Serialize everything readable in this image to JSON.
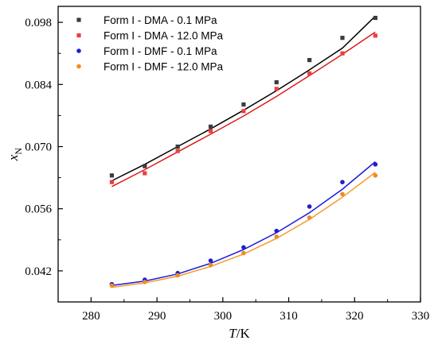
{
  "chart_data": {
    "type": "scatter",
    "xlabel": "T/K",
    "ylabel": "xN",
    "xlim": [
      275,
      330
    ],
    "ylim": [
      0.035,
      0.1016
    ],
    "xticks": [
      280,
      290,
      300,
      310,
      320,
      330
    ],
    "yticks": [
      0.042,
      0.056,
      0.07,
      0.084,
      0.098
    ],
    "ytick_labels": [
      "0.042",
      "0.056",
      "0.070",
      "0.084",
      "0.098"
    ],
    "legend_position": "top-left",
    "grid": false,
    "series": [
      {
        "name": "Form I - DMA - 0.1 MPa",
        "marker": "square",
        "color": "#3c3c3c",
        "fit_color": "#000000",
        "x": [
          283.15,
          288.15,
          293.15,
          298.15,
          303.15,
          308.15,
          313.15,
          318.15,
          323.15
        ],
        "y": [
          0.0635,
          0.0656,
          0.07,
          0.0745,
          0.0795,
          0.0845,
          0.0895,
          0.0945,
          0.099
        ],
        "fit": [
          0.0623,
          0.066,
          0.07,
          0.074,
          0.0782,
          0.0826,
          0.0873,
          0.0922,
          0.0994
        ]
      },
      {
        "name": "Form I - DMA - 12.0 MPa",
        "marker": "square",
        "color": "#e84141",
        "fit_color": "#e01a1a",
        "x": [
          283.15,
          288.15,
          293.15,
          298.15,
          303.15,
          308.15,
          313.15,
          318.15,
          323.15
        ],
        "y": [
          0.062,
          0.064,
          0.069,
          0.0735,
          0.078,
          0.083,
          0.0865,
          0.091,
          0.095
        ],
        "fit": [
          0.061,
          0.0648,
          0.0688,
          0.0728,
          0.0769,
          0.0813,
          0.086,
          0.0908,
          0.0958
        ]
      },
      {
        "name": "Form I - DMF - 0.1 MPa",
        "marker": "circle",
        "color": "#1f1fcf",
        "fit_color": "#1a1ae0",
        "x": [
          283.15,
          288.15,
          293.15,
          298.15,
          303.15,
          308.15,
          313.15,
          318.15,
          323.15
        ],
        "y": [
          0.039,
          0.04,
          0.0415,
          0.0443,
          0.0473,
          0.051,
          0.0565,
          0.062,
          0.066
        ],
        "fit": [
          0.0387,
          0.0397,
          0.0413,
          0.0437,
          0.0468,
          0.0506,
          0.0551,
          0.0604,
          0.0666
        ]
      },
      {
        "name": "Form I - DMF - 12.0 MPa",
        "marker": "circle",
        "color": "#f08c1e",
        "fit_color": "#f59a2a",
        "x": [
          283.15,
          288.15,
          293.15,
          298.15,
          303.15,
          308.15,
          313.15,
          318.15,
          323.15
        ],
        "y": [
          0.0387,
          0.0395,
          0.041,
          0.0433,
          0.046,
          0.0497,
          0.054,
          0.0593,
          0.0635
        ],
        "fit": [
          0.0383,
          0.0393,
          0.0408,
          0.043,
          0.0458,
          0.0493,
          0.0536,
          0.0586,
          0.0642
        ]
      }
    ]
  }
}
